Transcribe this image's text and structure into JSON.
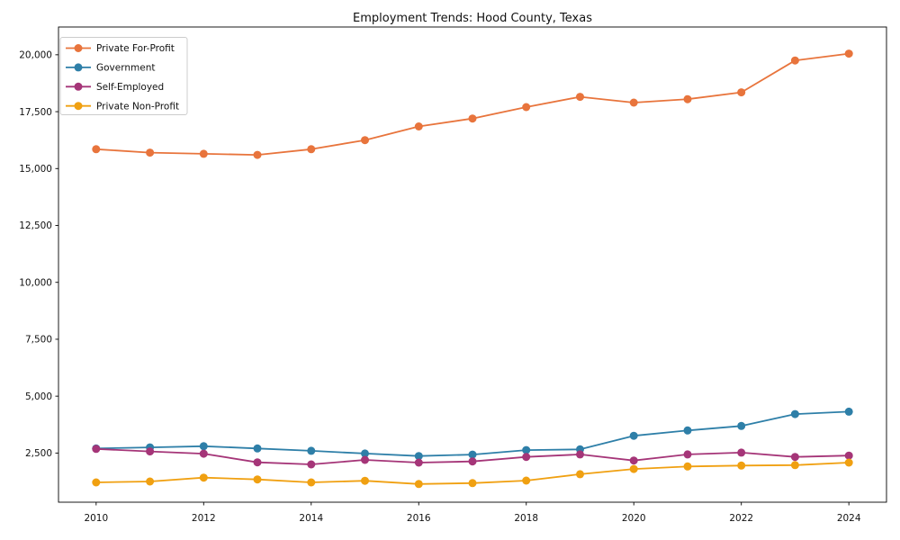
{
  "chart_data": {
    "type": "line",
    "title": "Employment Trends: Hood County, Texas",
    "xlabel": "",
    "ylabel": "",
    "x": [
      2010,
      2011,
      2012,
      2013,
      2014,
      2015,
      2016,
      2017,
      2018,
      2019,
      2020,
      2021,
      2022,
      2023,
      2024
    ],
    "series": [
      {
        "name": "Private For-Profit",
        "color": "#e8743c",
        "values": [
          15850,
          15700,
          15650,
          15600,
          15850,
          16250,
          16850,
          17200,
          17700,
          18150,
          17900,
          18050,
          18350,
          19750,
          20050
        ]
      },
      {
        "name": "Government",
        "color": "#2e7fa8",
        "values": [
          2700,
          2750,
          2800,
          2700,
          2600,
          2480,
          2370,
          2430,
          2630,
          2660,
          3260,
          3490,
          3690,
          4210,
          4320
        ]
      },
      {
        "name": "Self-Employed",
        "color": "#a53578",
        "values": [
          2680,
          2570,
          2470,
          2090,
          2000,
          2200,
          2080,
          2130,
          2330,
          2440,
          2170,
          2440,
          2520,
          2330,
          2390
        ]
      },
      {
        "name": "Private Non-Profit",
        "color": "#f0a011",
        "values": [
          1210,
          1250,
          1420,
          1340,
          1210,
          1280,
          1140,
          1180,
          1290,
          1570,
          1800,
          1910,
          1950,
          1970,
          2080
        ]
      }
    ],
    "x_ticks": [
      2010,
      2012,
      2014,
      2016,
      2018,
      2020,
      2022,
      2024
    ],
    "y_ticks": [
      2500,
      5000,
      7500,
      10000,
      12500,
      15000,
      17500,
      20000
    ],
    "y_tick_format": "comma",
    "xlim": [
      2009.3,
      2024.7
    ],
    "ylim": [
      340,
      21220
    ],
    "grid": false,
    "legend_position": "upper-left",
    "axes_frame": "box",
    "colors": {
      "spine": "#000000",
      "legend_border": "#cccccc",
      "background": "#ffffff"
    }
  }
}
